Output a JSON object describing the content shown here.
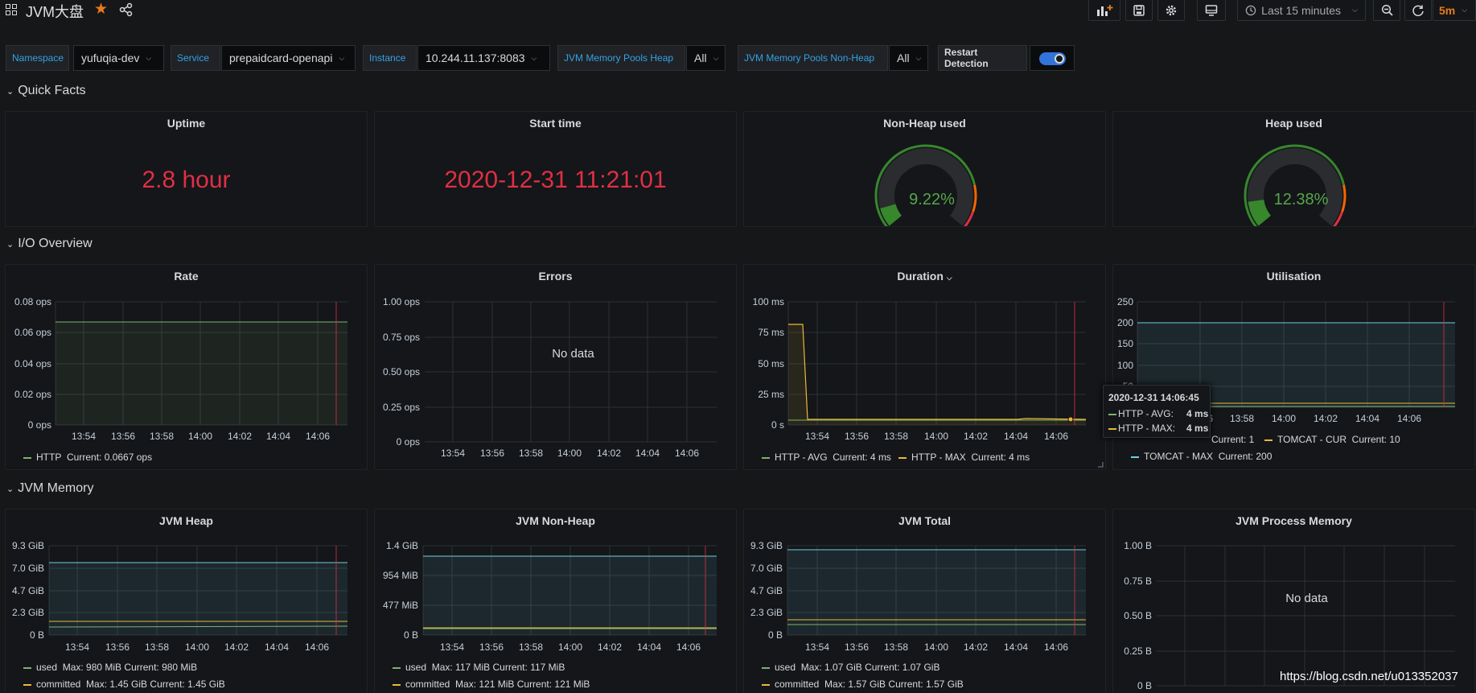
{
  "header": {
    "title": "JVM大盘",
    "time_range": "Last 15 minutes",
    "refresh_interval": "5m"
  },
  "variables": [
    {
      "label": "Namespace",
      "value": "yufuqia-dev"
    },
    {
      "label": "Service",
      "value": "prepaidcard-openapi"
    },
    {
      "label": "Instance",
      "value": "10.244.11.137:8083"
    },
    {
      "label": "JVM Memory Pools Heap",
      "value": "All"
    },
    {
      "label": "JVM Memory Pools Non-Heap",
      "value": "All"
    }
  ],
  "restart_detection": {
    "label": "Restart Detection",
    "enabled": true
  },
  "rows": {
    "quick_facts": "Quick Facts",
    "io_overview": "I/O Overview",
    "jvm_memory": "JVM Memory"
  },
  "quick_facts": {
    "uptime": {
      "title": "Uptime",
      "value": "2.8 hour"
    },
    "start_time": {
      "title": "Start time",
      "value": "2020-12-31 11:21:01"
    },
    "non_heap": {
      "title": "Non-Heap used",
      "value": "9.22%",
      "percent": 9.22
    },
    "heap": {
      "title": "Heap used",
      "value": "12.38%",
      "percent": 12.38
    }
  },
  "x_ticks": [
    "13:54",
    "13:56",
    "13:58",
    "14:00",
    "14:02",
    "14:04",
    "14:06"
  ],
  "io": {
    "rate": {
      "title": "Rate",
      "y_ticks": [
        "0.08 ops",
        "0.06 ops",
        "0.04 ops",
        "0.02 ops",
        "0 ops"
      ],
      "legend": [
        {
          "name": "HTTP",
          "stats": "Current: 0.0667 ops",
          "color": "#7eb26d"
        }
      ]
    },
    "errors": {
      "title": "Errors",
      "y_ticks": [
        "1.00 ops",
        "0.75 ops",
        "0.50 ops",
        "0.25 ops",
        "0 ops"
      ],
      "no_data": "No data"
    },
    "duration": {
      "title": "Duration",
      "y_ticks": [
        "100 ms",
        "75 ms",
        "50 ms",
        "25 ms",
        "0 s"
      ],
      "legend": [
        {
          "name": "HTTP - AVG",
          "stats": "Current: 4 ms",
          "color": "#7eb26d"
        },
        {
          "name": "HTTP - MAX",
          "stats": "Current: 4 ms",
          "color": "#eab839"
        }
      ]
    },
    "utilisation": {
      "title": "Utilisation",
      "y_ticks": [
        "250",
        "200",
        "150",
        "100",
        "50",
        "0"
      ],
      "x_ticks_visible": [
        "13:56",
        "13:58",
        "14:00",
        "14:02",
        "14:04",
        "14:06"
      ],
      "x_tick_partial": ":56",
      "legend_partial": "Current: 1",
      "legend": [
        {
          "name": "TOMCAT - CUR",
          "stats": "Current: 10",
          "color": "#eab839"
        },
        {
          "name": "TOMCAT - MAX",
          "stats": "Current: 200",
          "color": "#6ed0e0"
        }
      ]
    }
  },
  "tooltip": {
    "time": "2020-12-31 14:06:45",
    "rows": [
      {
        "name": "HTTP - AVG:",
        "value": "4 ms",
        "color": "#7eb26d"
      },
      {
        "name": "HTTP - MAX:",
        "value": "4 ms",
        "color": "#eab839"
      }
    ]
  },
  "memory": {
    "heap": {
      "title": "JVM Heap",
      "y_ticks": [
        "9.3 GiB",
        "7.0 GiB",
        "4.7 GiB",
        "2.3 GiB",
        "0 B"
      ],
      "legend": [
        {
          "name": "used",
          "stats": "Max: 980 MiB  Current: 980 MiB",
          "color": "#7eb26d"
        },
        {
          "name": "committed",
          "stats": "Max: 1.45 GiB  Current: 1.45 GiB",
          "color": "#eab839"
        }
      ]
    },
    "non_heap": {
      "title": "JVM Non-Heap",
      "y_ticks": [
        "1.4 GiB",
        "954 MiB",
        "477 MiB",
        "0 B"
      ],
      "legend": [
        {
          "name": "used",
          "stats": "Max: 117 MiB  Current: 117 MiB",
          "color": "#7eb26d"
        },
        {
          "name": "committed",
          "stats": "Max: 121 MiB  Current: 121 MiB",
          "color": "#eab839"
        }
      ]
    },
    "total": {
      "title": "JVM Total",
      "y_ticks": [
        "9.3 GiB",
        "7.0 GiB",
        "4.7 GiB",
        "2.3 GiB",
        "0 B"
      ],
      "legend": [
        {
          "name": "used",
          "stats": "Max: 1.07 GiB  Current: 1.07 GiB",
          "color": "#7eb26d"
        },
        {
          "name": "committed",
          "stats": "Max: 1.57 GiB  Current: 1.57 GiB",
          "color": "#eab839"
        }
      ]
    },
    "process": {
      "title": "JVM Process Memory",
      "y_ticks": [
        "1.00 B",
        "0.75 B",
        "0.50 B",
        "0.25 B",
        "0 B"
      ],
      "no_data": "No data"
    }
  },
  "watermark": "https://blog.csdn.net/u013352037"
}
